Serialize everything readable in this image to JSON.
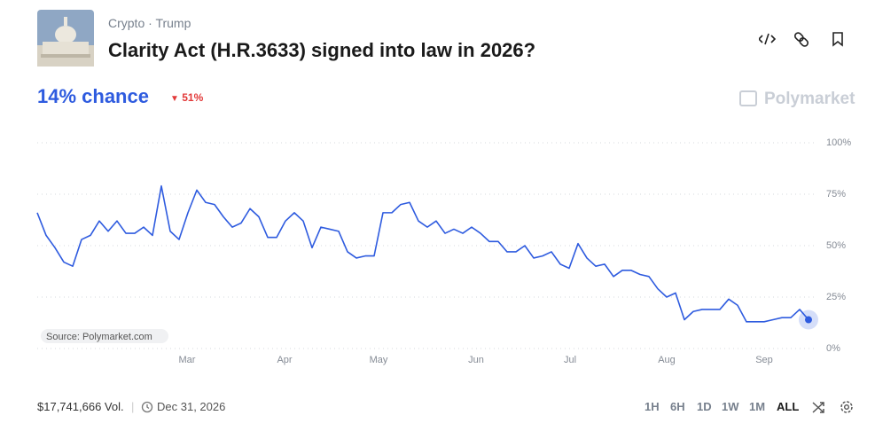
{
  "header": {
    "breadcrumb": [
      "Crypto",
      "Trump"
    ],
    "title": "Clarity Act (H.R.3633) signed into law in 2026?",
    "headline": "14% chance",
    "change": "51%",
    "brand": "Polymarket"
  },
  "chart_data": {
    "type": "line",
    "source": "Source: Polymarket.com",
    "series": [
      {
        "color": "#2e5bdf",
        "values": [
          66,
          55,
          49,
          42,
          40,
          53,
          55,
          62,
          57,
          62,
          56,
          56,
          59,
          55,
          79,
          57,
          53,
          66,
          77,
          71,
          70,
          64,
          59,
          61,
          68,
          64,
          54,
          54,
          62,
          66,
          62,
          49,
          59,
          58,
          57,
          47,
          44,
          45,
          45,
          66,
          66,
          70,
          71,
          62,
          59,
          62,
          56,
          58,
          56,
          59,
          56,
          52,
          52,
          47,
          47,
          50,
          44,
          45,
          47,
          41,
          39,
          51,
          44,
          40,
          41,
          35,
          38,
          38,
          36,
          35,
          29,
          25,
          27,
          14,
          18,
          19,
          19,
          19,
          24,
          21,
          13,
          13,
          13,
          14,
          15,
          15,
          19,
          14
        ]
      }
    ],
    "xlim": [
      0,
      87
    ],
    "xticks": [
      {
        "value": 16.9,
        "label": "Mar"
      },
      {
        "value": 27.9,
        "label": "Apr"
      },
      {
        "value": 38.5,
        "label": "May"
      },
      {
        "value": 49.5,
        "label": "Jun"
      },
      {
        "value": 60.1,
        "label": "Jul"
      },
      {
        "value": 71,
        "label": "Aug"
      },
      {
        "value": 82,
        "label": "Sep"
      }
    ],
    "ylim": [
      0,
      100
    ],
    "yticks": [
      {
        "value": 0,
        "label": "0%"
      },
      {
        "value": 25,
        "label": "25%"
      },
      {
        "value": 50,
        "label": "50%"
      },
      {
        "value": 75,
        "label": "75%"
      },
      {
        "value": 100,
        "label": "100%"
      }
    ],
    "grid": true
  },
  "footer": {
    "volume": "$17,741,666 Vol.",
    "end_date": "Dec 31, 2026",
    "ranges": [
      "1H",
      "6H",
      "1D",
      "1W",
      "1M",
      "ALL"
    ]
  }
}
